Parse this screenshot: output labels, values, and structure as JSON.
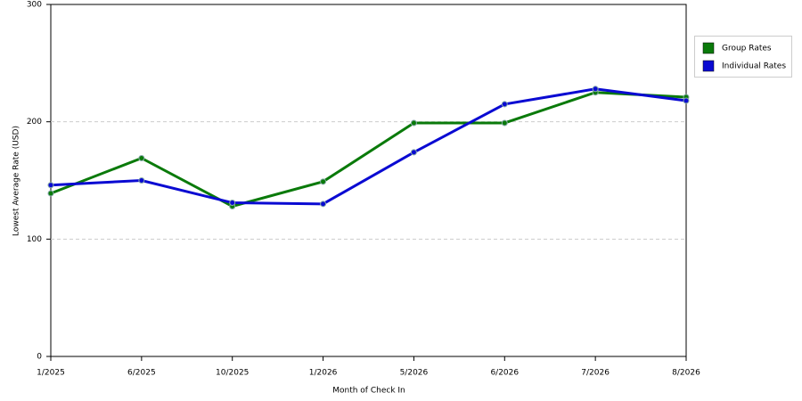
{
  "chart_data": {
    "type": "line",
    "x_label": "Month of Check In",
    "y_label": "Lowest Average Rate (USD)",
    "categories": [
      "1/2025",
      "6/2025",
      "10/2025",
      "1/2026",
      "5/2026",
      "6/2026",
      "7/2026",
      "8/2026"
    ],
    "series": [
      {
        "name": "Group Rates",
        "color": "#0a7a0a",
        "values": [
          139,
          169,
          128,
          149,
          199,
          199,
          225,
          221
        ]
      },
      {
        "name": "Individual Rates",
        "color": "#0a0ad2",
        "values": [
          146,
          150,
          131,
          130,
          174,
          215,
          228,
          218
        ]
      }
    ],
    "ylim": [
      0,
      300
    ],
    "yticks": [
      0,
      100,
      200,
      300
    ],
    "grid": true,
    "legend": "right"
  }
}
